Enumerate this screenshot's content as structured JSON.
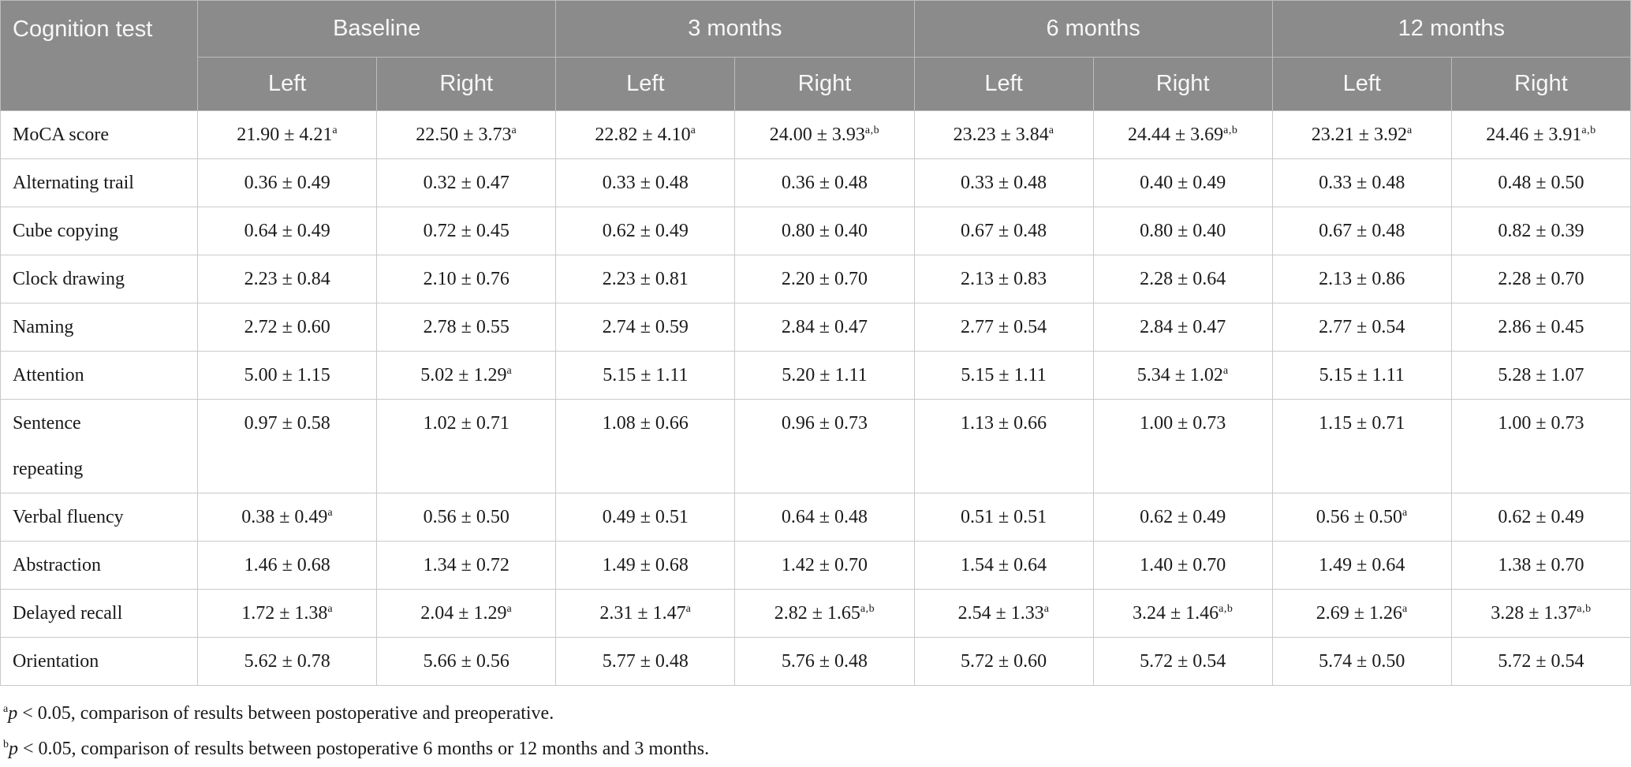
{
  "colors": {
    "header_bg": "#8b8b8b",
    "header_text": "#f7f7f7",
    "grid_line": "#c9c9c9"
  },
  "table": {
    "corner_header": "Cognition test",
    "period_headers": [
      "Baseline",
      "3 months",
      "6 months",
      "12 months"
    ],
    "sub_headers": [
      "Left",
      "Right",
      "Left",
      "Right",
      "Left",
      "Right",
      "Left",
      "Right"
    ],
    "rows": [
      {
        "label": "MoCA score",
        "cells": [
          {
            "v": "21.90 ± 4.21",
            "sup": "a"
          },
          {
            "v": "22.50 ± 3.73",
            "sup": "a"
          },
          {
            "v": "22.82 ± 4.10",
            "sup": "a"
          },
          {
            "v": "24.00 ± 3.93",
            "sup": "a,b"
          },
          {
            "v": "23.23 ± 3.84",
            "sup": "a"
          },
          {
            "v": "24.44 ± 3.69",
            "sup": "a,b"
          },
          {
            "v": "23.21 ± 3.92",
            "sup": "a"
          },
          {
            "v": "24.46 ± 3.91",
            "sup": "a,b"
          }
        ]
      },
      {
        "label": "Alternating trail",
        "cells": [
          {
            "v": "0.36 ± 0.49"
          },
          {
            "v": "0.32 ± 0.47"
          },
          {
            "v": "0.33 ± 0.48"
          },
          {
            "v": "0.36 ± 0.48"
          },
          {
            "v": "0.33 ± 0.48"
          },
          {
            "v": "0.40 ± 0.49"
          },
          {
            "v": "0.33 ± 0.48"
          },
          {
            "v": "0.48 ± 0.50"
          }
        ]
      },
      {
        "label": "Cube copying",
        "cells": [
          {
            "v": "0.64 ± 0.49"
          },
          {
            "v": "0.72 ± 0.45"
          },
          {
            "v": "0.62 ± 0.49"
          },
          {
            "v": "0.80 ± 0.40"
          },
          {
            "v": "0.67 ± 0.48"
          },
          {
            "v": "0.80 ± 0.40"
          },
          {
            "v": "0.67 ± 0.48"
          },
          {
            "v": "0.82 ± 0.39"
          }
        ]
      },
      {
        "label": "Clock drawing",
        "cells": [
          {
            "v": "2.23 ± 0.84"
          },
          {
            "v": "2.10 ± 0.76"
          },
          {
            "v": "2.23 ± 0.81"
          },
          {
            "v": "2.20 ± 0.70"
          },
          {
            "v": "2.13 ± 0.83"
          },
          {
            "v": "2.28 ± 0.64"
          },
          {
            "v": "2.13 ± 0.86"
          },
          {
            "v": "2.28 ± 0.70"
          }
        ]
      },
      {
        "label": "Naming",
        "cells": [
          {
            "v": "2.72 ± 0.60"
          },
          {
            "v": "2.78 ± 0.55"
          },
          {
            "v": "2.74 ± 0.59"
          },
          {
            "v": "2.84 ± 0.47"
          },
          {
            "v": "2.77 ± 0.54"
          },
          {
            "v": "2.84 ± 0.47"
          },
          {
            "v": "2.77 ± 0.54"
          },
          {
            "v": "2.86 ± 0.45"
          }
        ]
      },
      {
        "label": "Attention",
        "cells": [
          {
            "v": "5.00 ± 1.15"
          },
          {
            "v": "5.02 ± 1.29",
            "sup": "a"
          },
          {
            "v": "5.15 ± 1.11"
          },
          {
            "v": "5.20 ± 1.11"
          },
          {
            "v": "5.15 ± 1.11"
          },
          {
            "v": "5.34 ± 1.02",
            "sup": "a"
          },
          {
            "v": "5.15 ± 1.11"
          },
          {
            "v": "5.28 ± 1.07"
          }
        ]
      },
      {
        "label": "Sentence repeating",
        "cells": [
          {
            "v": "0.97 ± 0.58"
          },
          {
            "v": "1.02 ± 0.71"
          },
          {
            "v": "1.08 ± 0.66"
          },
          {
            "v": "0.96 ± 0.73"
          },
          {
            "v": "1.13 ± 0.66"
          },
          {
            "v": "1.00 ± 0.73"
          },
          {
            "v": "1.15 ± 0.71"
          },
          {
            "v": "1.00 ± 0.73"
          }
        ]
      },
      {
        "label": "Verbal fluency",
        "cells": [
          {
            "v": "0.38 ± 0.49",
            "sup": "a"
          },
          {
            "v": "0.56 ± 0.50"
          },
          {
            "v": "0.49 ± 0.51"
          },
          {
            "v": "0.64 ± 0.48"
          },
          {
            "v": "0.51 ± 0.51"
          },
          {
            "v": "0.62 ± 0.49"
          },
          {
            "v": "0.56 ± 0.50",
            "sup": "a"
          },
          {
            "v": "0.62 ± 0.49"
          }
        ]
      },
      {
        "label": "Abstraction",
        "cells": [
          {
            "v": "1.46 ± 0.68"
          },
          {
            "v": "1.34 ± 0.72"
          },
          {
            "v": "1.49 ± 0.68"
          },
          {
            "v": "1.42 ± 0.70"
          },
          {
            "v": "1.54 ± 0.64"
          },
          {
            "v": "1.40 ± 0.70"
          },
          {
            "v": "1.49 ± 0.64"
          },
          {
            "v": "1.38 ± 0.70"
          }
        ]
      },
      {
        "label": "Delayed recall",
        "cells": [
          {
            "v": "1.72 ± 1.38",
            "sup": "a"
          },
          {
            "v": "2.04 ± 1.29",
            "sup": "a"
          },
          {
            "v": "2.31 ± 1.47",
            "sup": "a"
          },
          {
            "v": "2.82 ± 1.65",
            "sup": "a,b"
          },
          {
            "v": "2.54 ± 1.33",
            "sup": "a"
          },
          {
            "v": "3.24 ± 1.46",
            "sup": "a,b"
          },
          {
            "v": "2.69 ± 1.26",
            "sup": "a"
          },
          {
            "v": "3.28 ± 1.37",
            "sup": "a,b"
          }
        ]
      },
      {
        "label": "Orientation",
        "cells": [
          {
            "v": "5.62 ± 0.78"
          },
          {
            "v": "5.66 ± 0.56"
          },
          {
            "v": "5.77 ± 0.48"
          },
          {
            "v": "5.76 ± 0.48"
          },
          {
            "v": "5.72 ± 0.60"
          },
          {
            "v": "5.72 ± 0.54"
          },
          {
            "v": "5.74 ± 0.50"
          },
          {
            "v": "5.72 ± 0.54"
          }
        ]
      }
    ]
  },
  "footnotes": [
    {
      "sup": "a",
      "p": "p",
      "text": " < 0.05, comparison of results between postoperative and preoperative."
    },
    {
      "sup": "b",
      "p": "p",
      "text": " < 0.05, comparison of results between postoperative 6 months or 12 months and 3 months."
    }
  ]
}
